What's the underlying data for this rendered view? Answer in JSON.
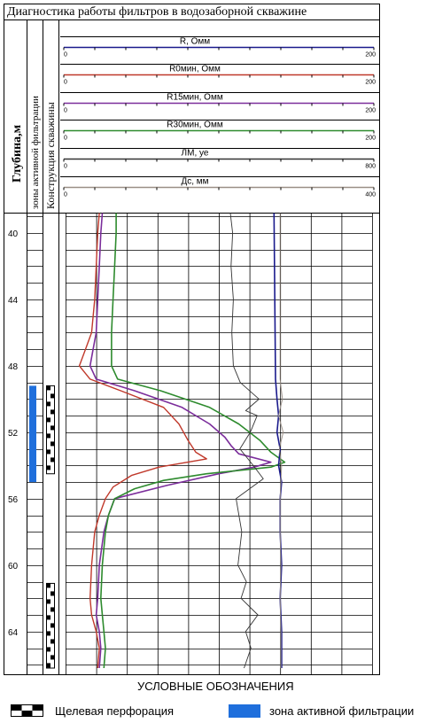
{
  "title": "Диагностика работы фильтров в водозаборной скважине",
  "columns": {
    "depth": "Глубина,м",
    "zones": "зоны активной фильтрации",
    "construction": "Конструкция скважины"
  },
  "legend": {
    "heading": "УСЛОВНЫЕ ОБОЗНАЧЕНИЯ",
    "perforation_label": "Щелевая перфорация",
    "zone_label": "зона активной фильтрации"
  },
  "colors": {
    "R": "#1a1a8c",
    "R0": "#c0392b",
    "R15": "#7b2d9b",
    "R30": "#2e8b2e",
    "LM": "#333333",
    "Dc": "#9a8f86",
    "zone": "#1f6fdc"
  },
  "chart_data": {
    "type": "line",
    "depth_range": [
      38.8,
      66.6
    ],
    "depth_ticks": [
      40,
      44,
      48,
      52,
      56,
      60,
      64
    ],
    "depth_unit": "м",
    "scales": [
      {
        "key": "R",
        "name": "R, Омм",
        "min": 0,
        "max": 200,
        "min_label": "0",
        "max_label": "200",
        "color": "#1a1a8c"
      },
      {
        "key": "R0",
        "name": "R0мин, Омм",
        "min": 0,
        "max": 200,
        "min_label": "0",
        "max_label": "200",
        "color": "#c0392b"
      },
      {
        "key": "R15",
        "name": "R15мин, Омм",
        "min": 0,
        "max": 200,
        "min_label": "0",
        "max_label": "200",
        "color": "#7b2d9b"
      },
      {
        "key": "R30",
        "name": "R30мин, Омм",
        "min": 0,
        "max": 200,
        "min_label": "0",
        "max_label": "200",
        "color": "#2e8b2e"
      },
      {
        "key": "LM",
        "name": "ЛМ, уе",
        "min": 0,
        "max": 800,
        "min_label": "0",
        "max_label": "800",
        "color": "#333333"
      },
      {
        "key": "Dc",
        "name": "Дс, мм",
        "min": 0,
        "max": 400,
        "min_label": "0",
        "max_label": "400",
        "color": "#9a8f86"
      }
    ],
    "series": [
      {
        "key": "R0",
        "name": "R0мин, Омм",
        "depth": [
          38.8,
          40,
          42,
          44,
          46,
          47,
          48,
          48.8,
          49.5,
          50.5,
          51.5,
          52.5,
          53.2,
          53.6,
          54.1,
          54.6,
          55.3,
          56,
          57,
          58,
          60,
          62,
          63,
          64,
          65,
          66.2
        ],
        "values": [
          22,
          21,
          20,
          19,
          17,
          13,
          9,
          16,
          36,
          64,
          74,
          80,
          85,
          92,
          61,
          43,
          31,
          26,
          22,
          19,
          17,
          16,
          17,
          20,
          22,
          21
        ]
      },
      {
        "key": "R15",
        "name": "R15мин, Омм",
        "depth": [
          38.8,
          40,
          42,
          44,
          46,
          47,
          48,
          48.8,
          49.5,
          50.5,
          51.5,
          52.3,
          52.8,
          53.3,
          53.8,
          54.1,
          54.5,
          55.2,
          56,
          57,
          58,
          60,
          62,
          63,
          64,
          65,
          66.2
        ],
        "values": [
          24,
          23,
          22,
          21,
          20,
          18,
          16,
          20,
          45,
          76,
          94,
          104,
          108,
          113,
          134,
          123,
          100,
          66,
          32,
          28,
          25,
          22,
          21,
          20,
          22,
          23,
          22
        ]
      },
      {
        "key": "R30",
        "name": "R30мин, Омм",
        "depth": [
          38.8,
          40,
          42,
          44,
          46,
          47,
          48,
          48.8,
          49.5,
          50.5,
          51.5,
          52.5,
          53.2,
          53.8,
          54.1,
          54.5,
          54.9,
          55.4,
          56,
          57,
          58,
          60,
          62,
          63,
          64,
          65,
          66.2
        ],
        "values": [
          33,
          33,
          32,
          31,
          30,
          30,
          30,
          34,
          62,
          94,
          113,
          127,
          134,
          143,
          134,
          92,
          64,
          45,
          32,
          28,
          26,
          24,
          23,
          24,
          25,
          26,
          25
        ]
      },
      {
        "key": "R",
        "name": "R, Омм",
        "depth": [
          38.8,
          48.8,
          50,
          51,
          52,
          53,
          54,
          55,
          56,
          58,
          60,
          62,
          64,
          66.2
        ],
        "values": [
          136,
          137,
          138,
          139,
          138,
          140,
          139,
          141,
          140,
          140,
          141,
          140,
          141,
          141
        ]
      },
      {
        "key": "Dc",
        "name": "Дс, мм",
        "depth": [
          38.8,
          48.8,
          50,
          51,
          52,
          53,
          54,
          55,
          56,
          58,
          60,
          62,
          64,
          66.2
        ],
        "values": [
          280,
          280,
          283,
          278,
          284,
          279,
          282,
          281,
          280,
          280,
          281,
          280,
          281,
          281
        ]
      },
      {
        "key": "LM",
        "name": "ЛМ, уе",
        "depth": [
          38.8,
          40,
          42,
          44,
          46,
          48,
          49,
          50,
          50.7,
          51,
          52,
          53,
          54,
          54.8,
          56,
          58,
          60,
          61,
          62,
          63,
          64,
          65,
          66.2
        ],
        "values": [
          430,
          436,
          432,
          438,
          434,
          438,
          456,
          505,
          470,
          500,
          482,
          455,
          490,
          516,
          445,
          460,
          450,
          472,
          458,
          502,
          470,
          484,
          466
        ]
      }
    ],
    "zones_active": [
      [
        49.2,
        55.0
      ]
    ],
    "perforations": [
      [
        49.2,
        54.5
      ],
      [
        61.1,
        66.2
      ]
    ]
  }
}
